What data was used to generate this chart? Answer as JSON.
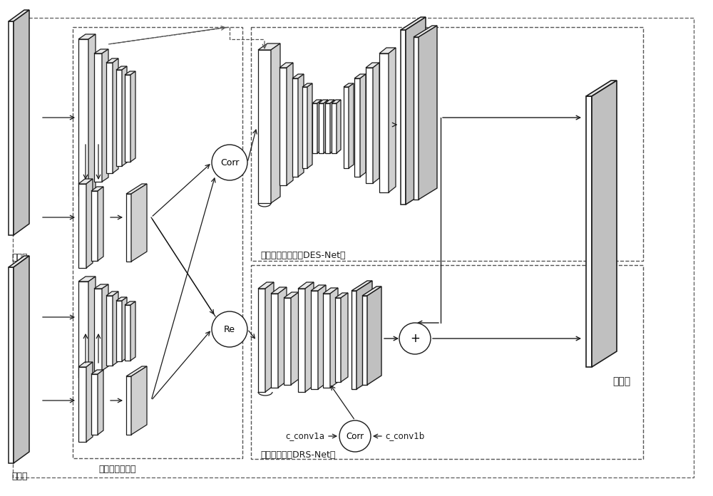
{
  "bg_color": "#ffffff",
  "line_color": "#1a1a1a",
  "labels": {
    "left_image": "左图像",
    "right_image": "右图像",
    "shared_layer": "共享特征提取层",
    "des_net": "初始视差估计层（DES-Net）",
    "drs_net": "视差优化层（DRS-Net）",
    "disparity_map": "视差图",
    "corr_top": "Corr",
    "re": "Re",
    "corr_bot": "Corr",
    "c_conv1a": "c_conv1a",
    "c_conv1b": "c_conv1b",
    "plus": "+"
  },
  "fig_w": 10.0,
  "fig_h": 6.96
}
